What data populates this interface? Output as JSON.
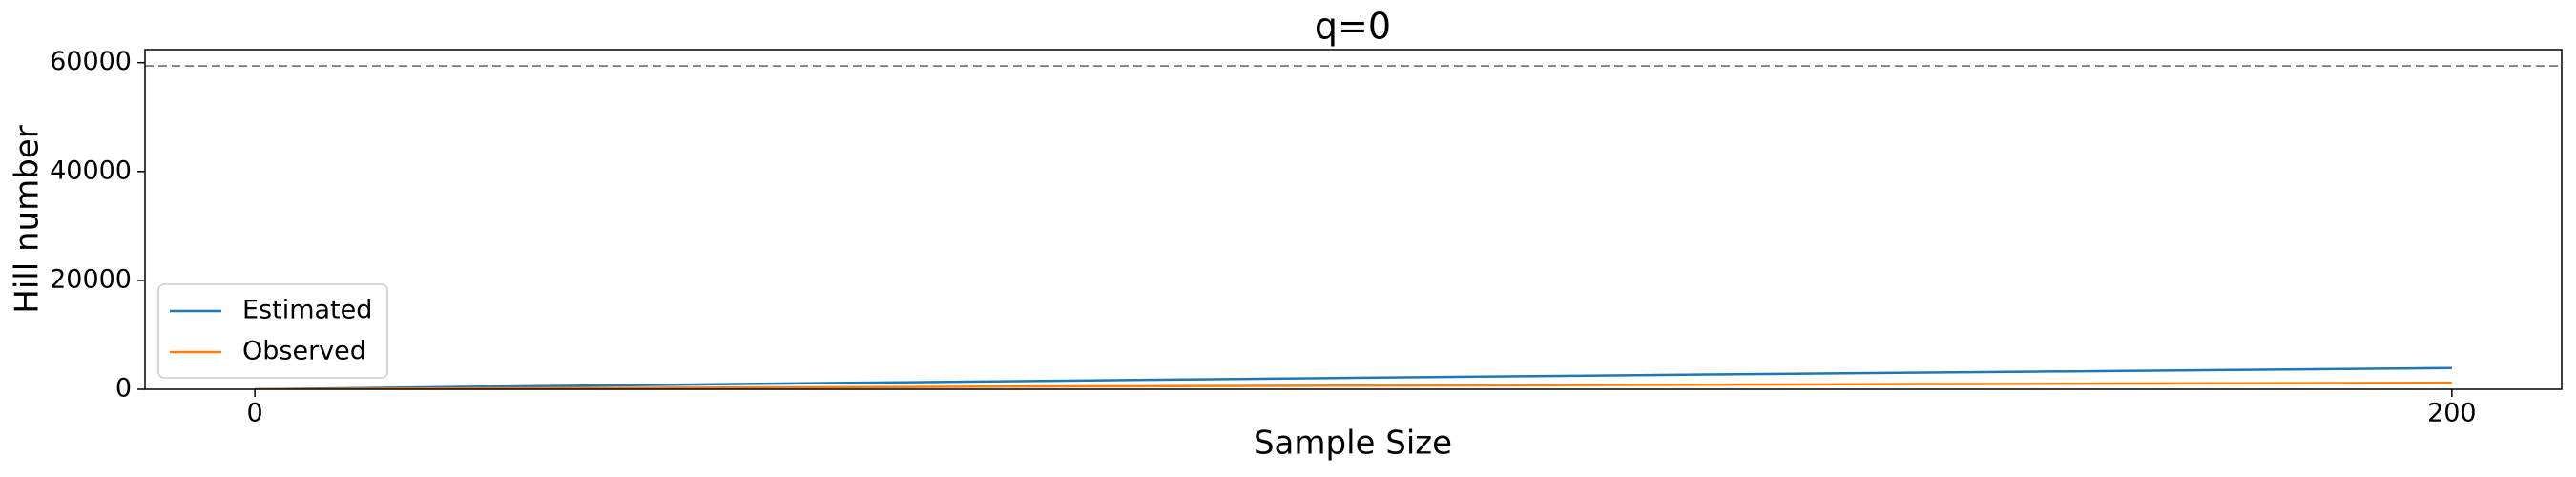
{
  "chart_data": {
    "type": "line",
    "title": "q=0",
    "x_label": "Sample Size",
    "y_label": "Hill number",
    "x": [
      0,
      20,
      40,
      60,
      80,
      100,
      120,
      140,
      160,
      180,
      200
    ],
    "series": [
      {
        "name": "Estimated",
        "color": "#1f77b4",
        "values": [
          0,
          450,
          880,
          1300,
          1700,
          2100,
          2480,
          2850,
          3200,
          3550,
          3900
        ],
        "lower": [
          0,
          420,
          830,
          1230,
          1610,
          1990,
          2350,
          2700,
          3030,
          3360,
          3690
        ],
        "upper": [
          0,
          480,
          930,
          1370,
          1790,
          2210,
          2610,
          3000,
          3370,
          3740,
          4110
        ]
      },
      {
        "name": "Observed",
        "color": "#ff7f0e",
        "values": [
          0,
          150,
          290,
          420,
          540,
          660,
          770,
          880,
          990,
          1090,
          1200
        ]
      }
    ],
    "reference_line": 59400,
    "xlim": [
      -10,
      210
    ],
    "xticks": [
      0,
      200
    ],
    "ylim": [
      0,
      62400
    ],
    "yticks": [
      0,
      20000,
      40000,
      60000
    ],
    "legend": "lower left"
  }
}
